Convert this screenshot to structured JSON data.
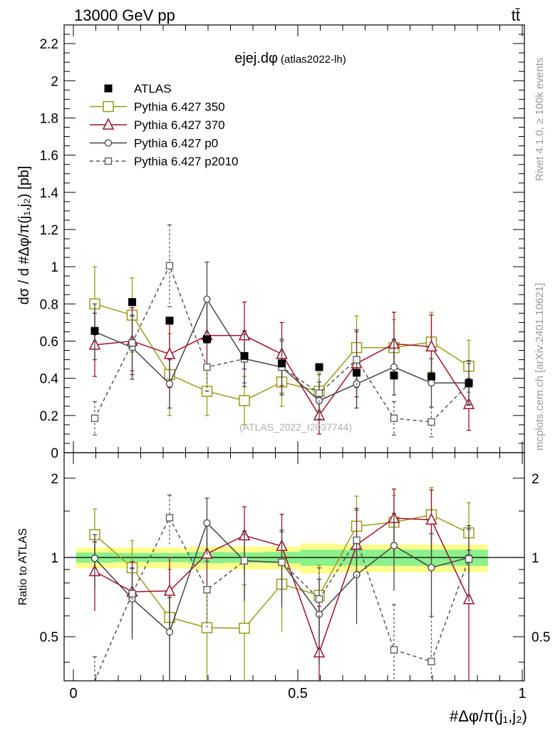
{
  "header": {
    "energy_label": "13000 GeV pp",
    "process_label": "tt̄",
    "side_top": "Rivet 4.1.0, ≥ 100k events",
    "side_bottom": "mcplots.cern.ch [arXiv:2401.10621]"
  },
  "chart_data": {
    "type": "scatter",
    "title": "ejej.dφ",
    "subtitle": "(atlas2022-lh)",
    "watermark": "(ATLAS_2022_I2037744)",
    "ylabel": "dσ / d #Δφ/π(j₁,j₂) [pb]",
    "ratio_ylabel": "Ratio to ATLAS",
    "xlabel": "#Δφ/π(j₁,j₂)",
    "xlim": [
      0,
      1
    ],
    "ylim": [
      0,
      2.3
    ],
    "ratio_ylim": [
      0.34,
      2.5
    ],
    "xticks": [
      "0",
      "0.5",
      "1"
    ],
    "yticks": [
      "0",
      "0.2",
      "0.4",
      "0.6",
      "0.8",
      "1",
      "1.2",
      "1.4",
      "1.6",
      "1.8",
      "2",
      "2.2"
    ],
    "ratio_yticks": [
      "0.5",
      "1",
      "2"
    ],
    "x": [
      0.0476,
      0.131,
      0.2143,
      0.2976,
      0.381,
      0.4643,
      0.5476,
      0.631,
      0.7143,
      0.7976,
      0.881
    ],
    "data": {
      "name": "ATLAS",
      "values": [
        0.655,
        0.81,
        0.71,
        0.61,
        0.52,
        0.48,
        0.46,
        0.43,
        0.415,
        0.41,
        0.375
      ],
      "band_stat": [
        0.045,
        0.04,
        0.04,
        0.05,
        0.045,
        0.05,
        0.07,
        0.07,
        0.07,
        0.07,
        0.07
      ],
      "band_total": [
        0.09,
        0.09,
        0.09,
        0.1,
        0.1,
        0.1,
        0.13,
        0.12,
        0.12,
        0.12,
        0.12
      ]
    },
    "series": [
      {
        "name": "Pythia 6.427 350",
        "marker": "square-open",
        "style": "solid",
        "color": "#9a9a1a",
        "values": [
          0.8,
          0.74,
          0.42,
          0.33,
          0.28,
          0.38,
          0.33,
          0.565,
          0.565,
          0.595,
          0.465
        ],
        "errors": [
          0.2,
          0.2,
          0.22,
          0.13,
          0.13,
          0.13,
          0.1,
          0.17,
          0.15,
          0.16,
          0.14
        ]
      },
      {
        "name": "Pythia 6.427 370",
        "marker": "triangle-open",
        "style": "solid",
        "color": "#a0102a",
        "values": [
          0.58,
          0.6,
          0.53,
          0.63,
          0.63,
          0.53,
          0.2,
          0.48,
          0.585,
          0.57,
          0.26
        ],
        "errors": [
          0.17,
          0.18,
          0.18,
          0.18,
          0.18,
          0.17,
          0.1,
          0.18,
          0.17,
          0.17,
          0.14
        ]
      },
      {
        "name": "Pythia 6.427 p0",
        "marker": "circle-open",
        "style": "solid",
        "color": "#444444",
        "values": [
          0.65,
          0.565,
          0.37,
          0.825,
          0.505,
          0.46,
          0.28,
          0.37,
          0.46,
          0.375,
          0.375
        ],
        "errors": [
          0.15,
          0.17,
          0.13,
          0.2,
          0.15,
          0.15,
          0.1,
          0.13,
          0.15,
          0.13,
          0.12
        ]
      },
      {
        "name": "Pythia 6.427 p2010",
        "marker": "square-small-open",
        "style": "dashed",
        "color": "#555555",
        "values": [
          0.185,
          0.59,
          1.005,
          0.46,
          0.505,
          0.46,
          0.32,
          0.5,
          0.185,
          0.165,
          0.37
        ],
        "errors": [
          0.09,
          0.15,
          0.22,
          0.13,
          0.13,
          0.14,
          0.1,
          0.15,
          0.09,
          0.08,
          0.11
        ]
      }
    ],
    "legend_position": "top-left"
  }
}
